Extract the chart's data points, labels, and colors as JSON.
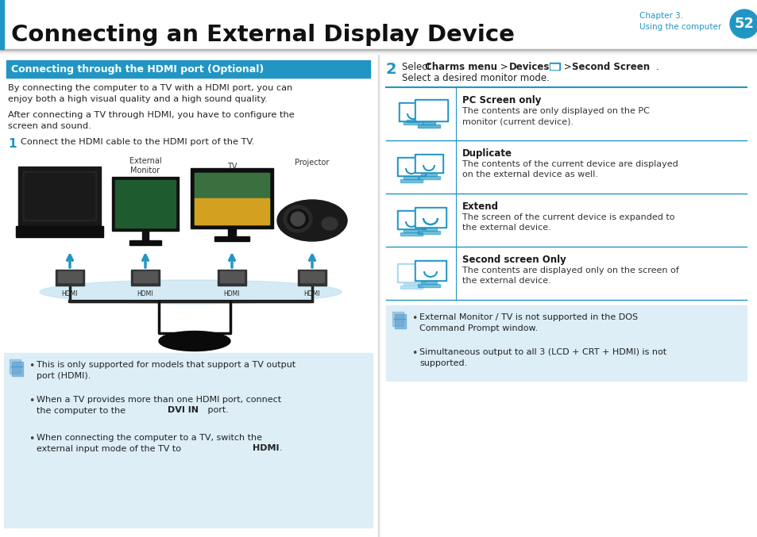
{
  "title": "Connecting an External Display Device",
  "chapter_label": "Chapter 3.",
  "chapter_sub": "Using the computer",
  "page_num": "52",
  "blue": "#2196c4",
  "dark_blue": "#1a7aaa",
  "light_blue_bg": "#ddeef7",
  "section_header_text": "Connecting through the HDMI port (Optional)",
  "body_text_1": "By connecting the computer to a TV with a HDMI port, you can\nenjoy both a high visual quality and a high sound quality.",
  "body_text_2": "After connecting a TV through HDMI, you have to configure the\nscreen and sound.",
  "step1_text": "Connect the HDMI cable to the HDMI port of the TV.",
  "note_left_bullets": [
    [
      "This is only supported for models that support a TV output\nport (HDMI).",
      []
    ],
    [
      "When a TV provides more than one HDMI port, connect\nthe computer to the ",
      [
        [
          "DVI IN",
          " port."
        ]
      ]
    ],
    [
      "When connecting the computer to a TV, switch the\nexternal input mode of the TV to ",
      [
        [
          "HDMI",
          "."
        ]
      ]
    ]
  ],
  "step2_line2": "Select a desired monitor mode.",
  "table_rows": [
    {
      "title": "PC Screen only",
      "desc": "The contents are only displayed on the PC\nmonitor (current device).",
      "icon_type": "pc_only"
    },
    {
      "title": "Duplicate",
      "desc": "The contents of the current device are displayed\non the external device as well.",
      "icon_type": "duplicate"
    },
    {
      "title": "Extend",
      "desc": "The screen of the current device is expanded to\nthe external device.",
      "icon_type": "extend"
    },
    {
      "title": "Second screen Only",
      "desc": "The contents are displayed only on the screen of\nthe external device.",
      "icon_type": "second_only"
    }
  ],
  "note_right_bullets": [
    "External Monitor / TV is not supported in the DOS\nCommand Prompt window.",
    "Simultaneous output to all 3 (LCD + CRT + HDMI) is not\nsupported."
  ]
}
